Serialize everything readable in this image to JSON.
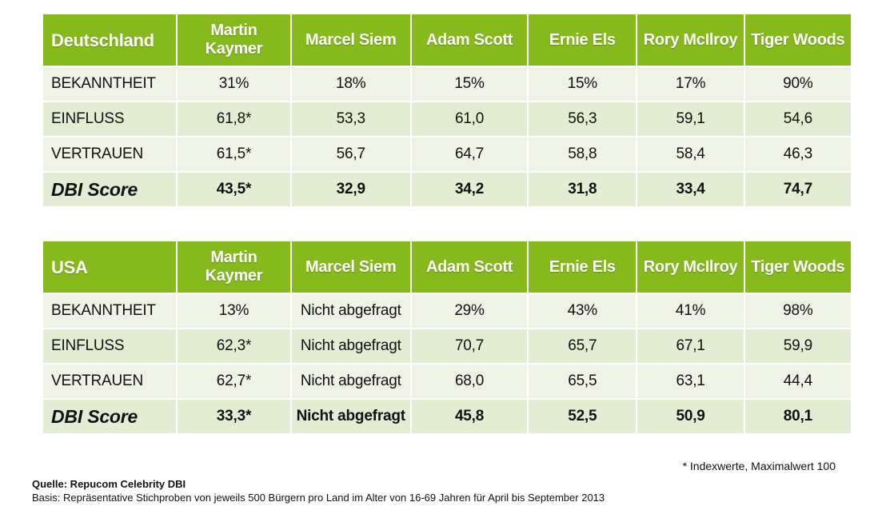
{
  "tables": [
    {
      "country": "Deutschland",
      "athletes": [
        "Martin Kaymer",
        "Marcel Siem",
        "Adam Scott",
        "Ernie Els",
        "Rory McIlroy",
        "Tiger Woods"
      ],
      "rows": [
        {
          "label": "BEKANNTHEIT",
          "values": [
            "31%",
            "18%",
            "15%",
            "15%",
            "17%",
            "90%"
          ]
        },
        {
          "label": "EINFLUSS",
          "values": [
            "61,8*",
            "53,3",
            "61,0",
            "56,3",
            "59,1",
            "54,6"
          ]
        },
        {
          "label": "VERTRAUEN",
          "values": [
            "61,5*",
            "56,7",
            "64,7",
            "58,8",
            "58,4",
            "46,3"
          ]
        },
        {
          "label": "DBI Score",
          "values": [
            "43,5*",
            "32,9",
            "34,2",
            "31,8",
            "33,4",
            "74,7"
          ]
        }
      ]
    },
    {
      "country": "USA",
      "athletes": [
        "Martin Kaymer",
        "Marcel Siem",
        "Adam Scott",
        "Ernie Els",
        "Rory McIlroy",
        "Tiger Woods"
      ],
      "rows": [
        {
          "label": "BEKANNTHEIT",
          "values": [
            "13%",
            "Nicht abgefragt",
            "29%",
            "43%",
            "41%",
            "98%"
          ]
        },
        {
          "label": "EINFLUSS",
          "values": [
            "62,3*",
            "Nicht abgefragt",
            "70,7",
            "65,7",
            "67,1",
            "59,9"
          ]
        },
        {
          "label": "VERTRAUEN",
          "values": [
            "62,7*",
            "Nicht abgefragt",
            "68,0",
            "65,5",
            "63,1",
            "44,4"
          ]
        },
        {
          "label": "DBI Score",
          "values": [
            "33,3*",
            "Nicht abgefragt",
            "45,8",
            "52,5",
            "50,9",
            "80,1"
          ]
        }
      ]
    }
  ],
  "footnote": "* Indexwerte, Maximalwert 100",
  "source": "Quelle: Repucom Celebrity DBI",
  "basis": "Basis: Repräsentative Stichproben von jeweils 500 Bürgern pro Land im Alter von 16-69 Jahren für April bis September 2013",
  "colors": {
    "header_green": "#86b91b",
    "row_light": "#eef3e6",
    "row_mid": "#e3edd3"
  }
}
